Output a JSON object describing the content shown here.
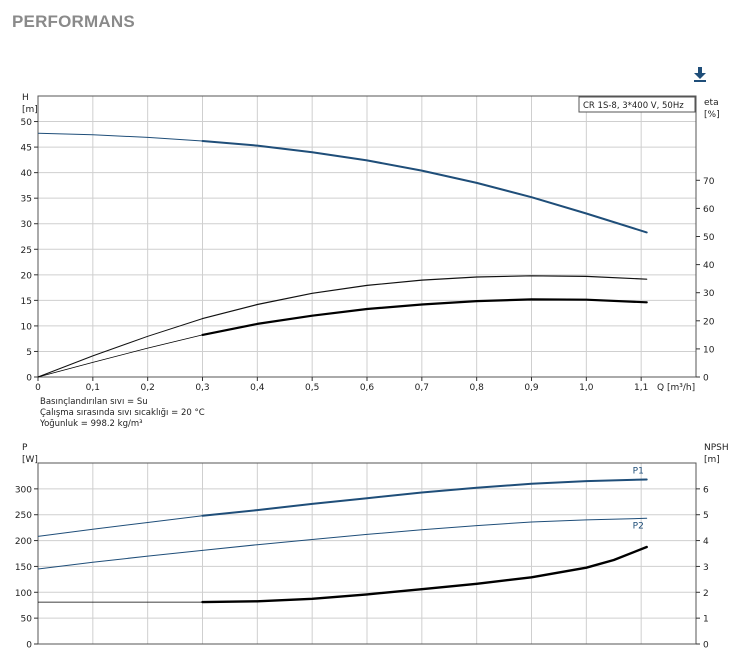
{
  "page": {
    "title": "PERFORMANS",
    "download_icon": "download-arrow-icon"
  },
  "chart_data": [
    {
      "type": "line",
      "legend_label": "CR 1S-8, 3*400 V, 50Hz",
      "legend_placement": "top-right",
      "grid": true,
      "xlabel": "Q [m³/h]",
      "xlim": [
        0,
        1.2
      ],
      "x_ticks": [
        "0",
        "0,1",
        "0,2",
        "0,3",
        "0,4",
        "0,5",
        "0,6",
        "0,7",
        "0,8",
        "0,9",
        "1,0",
        "1,1"
      ],
      "x_tick_values": [
        0,
        0.1,
        0.2,
        0.3,
        0.4,
        0.5,
        0.6,
        0.7,
        0.8,
        0.9,
        1.0,
        1.1
      ],
      "ylabel_left": [
        "H",
        "[m]"
      ],
      "ylim_left": [
        0,
        55
      ],
      "y_ticks_left": [
        0,
        5,
        10,
        15,
        20,
        25,
        30,
        35,
        40,
        45,
        50
      ],
      "ylabel_right": [
        "eta",
        "[%]"
      ],
      "ylim_right": [
        0,
        100
      ],
      "y_ticks_right": [
        0,
        10,
        20,
        30,
        40,
        50,
        60,
        70
      ],
      "notes": [
        "Basınçlandırılan sıvı = Su",
        "Çalışma sırasında sıvı sıcaklığı = 20 °C",
        "Yoğunluk = 998.2 kg/m³"
      ],
      "series": [
        {
          "axis": "left",
          "color": "#1f4e79",
          "width_thin": 1,
          "width_thick": 2,
          "thick_from": 0.3,
          "x": [
            0,
            0.1,
            0.2,
            0.3,
            0.4,
            0.5,
            0.6,
            0.7,
            0.8,
            0.9,
            1.0,
            1.11
          ],
          "y": [
            47.7,
            47.4,
            46.9,
            46.2,
            45.3,
            44.0,
            42.4,
            40.4,
            38.0,
            35.2,
            32.0,
            28.3
          ]
        },
        {
          "axis": "right",
          "color": "#111111",
          "width_thin": 1,
          "width_thick": 1.2,
          "thick_from": 0.3,
          "x": [
            0,
            0.1,
            0.2,
            0.3,
            0.4,
            0.5,
            0.6,
            0.7,
            0.8,
            0.9,
            1.0,
            1.11
          ],
          "y": [
            0,
            7.5,
            14.5,
            20.8,
            25.8,
            29.8,
            32.6,
            34.5,
            35.6,
            36.0,
            35.8,
            34.8
          ]
        },
        {
          "axis": "right",
          "color": "#000000",
          "width_thin": 0.8,
          "width_thick": 2.2,
          "thick_from": 0.3,
          "x": [
            0,
            0.1,
            0.2,
            0.3,
            0.4,
            0.5,
            0.6,
            0.7,
            0.8,
            0.9,
            1.0,
            1.11
          ],
          "y": [
            0,
            5.2,
            10.3,
            15.0,
            18.9,
            21.8,
            24.2,
            25.8,
            27.0,
            27.6,
            27.5,
            26.6
          ]
        }
      ]
    },
    {
      "type": "line",
      "grid": true,
      "xlim": [
        0,
        1.2
      ],
      "ylabel_left": [
        "P",
        "[W]"
      ],
      "ylim_left": [
        0,
        350
      ],
      "y_ticks_left": [
        0,
        50,
        100,
        150,
        200,
        250,
        300
      ],
      "ylabel_right": [
        "NPSH",
        "[m]"
      ],
      "ylim_right": [
        0,
        7
      ],
      "y_ticks_right": [
        0,
        1,
        2,
        3,
        4,
        5,
        6
      ],
      "series": [
        {
          "name": "P1",
          "axis": "left",
          "color": "#1f4e79",
          "width_thin": 1,
          "width_thick": 2,
          "thick_from": 0.3,
          "x": [
            0,
            0.1,
            0.2,
            0.3,
            0.4,
            0.5,
            0.6,
            0.7,
            0.8,
            0.9,
            1.0,
            1.11
          ],
          "y": [
            208,
            222,
            235,
            248,
            259,
            271,
            282,
            293,
            302,
            310,
            315,
            318
          ]
        },
        {
          "name": "P2",
          "axis": "left",
          "color": "#1f4e79",
          "width_thin": 1,
          "width_thick": 1,
          "thick_from": 0.3,
          "x": [
            0,
            0.1,
            0.2,
            0.3,
            0.4,
            0.5,
            0.6,
            0.7,
            0.8,
            0.9,
            1.0,
            1.11
          ],
          "y": [
            145,
            158,
            170,
            181,
            192,
            202,
            212,
            221,
            229,
            236,
            240,
            243
          ]
        },
        {
          "axis": "right",
          "color": "#000000",
          "width_thin": 0.8,
          "width_thick": 2.4,
          "thick_from": 0.3,
          "x": [
            0,
            0.1,
            0.2,
            0.3,
            0.4,
            0.5,
            0.6,
            0.7,
            0.8,
            0.9,
            1.0,
            1.05,
            1.11
          ],
          "y": [
            1.62,
            1.62,
            1.62,
            1.62,
            1.65,
            1.75,
            1.92,
            2.12,
            2.33,
            2.58,
            2.95,
            3.25,
            3.75
          ]
        }
      ]
    }
  ]
}
